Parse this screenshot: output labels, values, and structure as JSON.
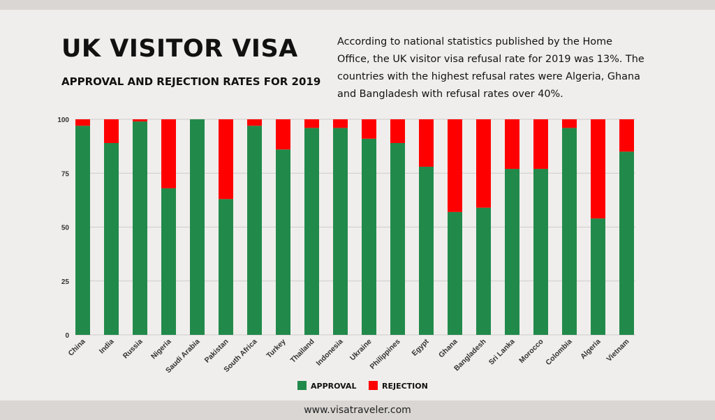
{
  "header": {
    "title": "UK VISITOR VISA",
    "subtitle": "APPROVAL AND REJECTION RATES FOR 2019",
    "description": "According to national statistics published by the Home Office, the UK visitor visa refusal rate for 2019 was 13%. The countries with the highest refusal rates were Algeria, Ghana and Bangladesh with refusal rates over 40%."
  },
  "footer": {
    "url": "www.visatraveler.com"
  },
  "colors": {
    "approval": "#218a4b",
    "rejection": "#ff0000",
    "gridline": "#cccccc"
  },
  "chart_data": {
    "type": "bar",
    "stacked": true,
    "title": "",
    "xlabel": "",
    "ylabel": "",
    "ylim": [
      0,
      100
    ],
    "yticks": [
      0,
      25,
      50,
      75,
      100
    ],
    "grid": true,
    "legend_position": "bottom-center",
    "categories": [
      "China",
      "India",
      "Russia",
      "Nigeria",
      "Saudi Arabia",
      "Pakistan",
      "South Africa",
      "Turkey",
      "Thailand",
      "Indonesia",
      "Ukraine",
      "Philippines",
      "Egypt",
      "Ghana",
      "Bangladesh",
      "Sri Lanka",
      "Morocco",
      "Colombia",
      "Algeria",
      "Vietnam"
    ],
    "series": [
      {
        "name": "APPROVAL",
        "values": [
          97,
          89,
          99,
          68,
          100,
          63,
          97,
          86,
          96,
          96,
          91,
          89,
          78,
          57,
          59,
          77,
          77,
          96,
          54,
          85
        ]
      },
      {
        "name": "REJECTION",
        "values": [
          3,
          11,
          1,
          32,
          0,
          37,
          3,
          14,
          4,
          4,
          9,
          11,
          22,
          43,
          41,
          23,
          23,
          4,
          46,
          15
        ]
      }
    ]
  }
}
